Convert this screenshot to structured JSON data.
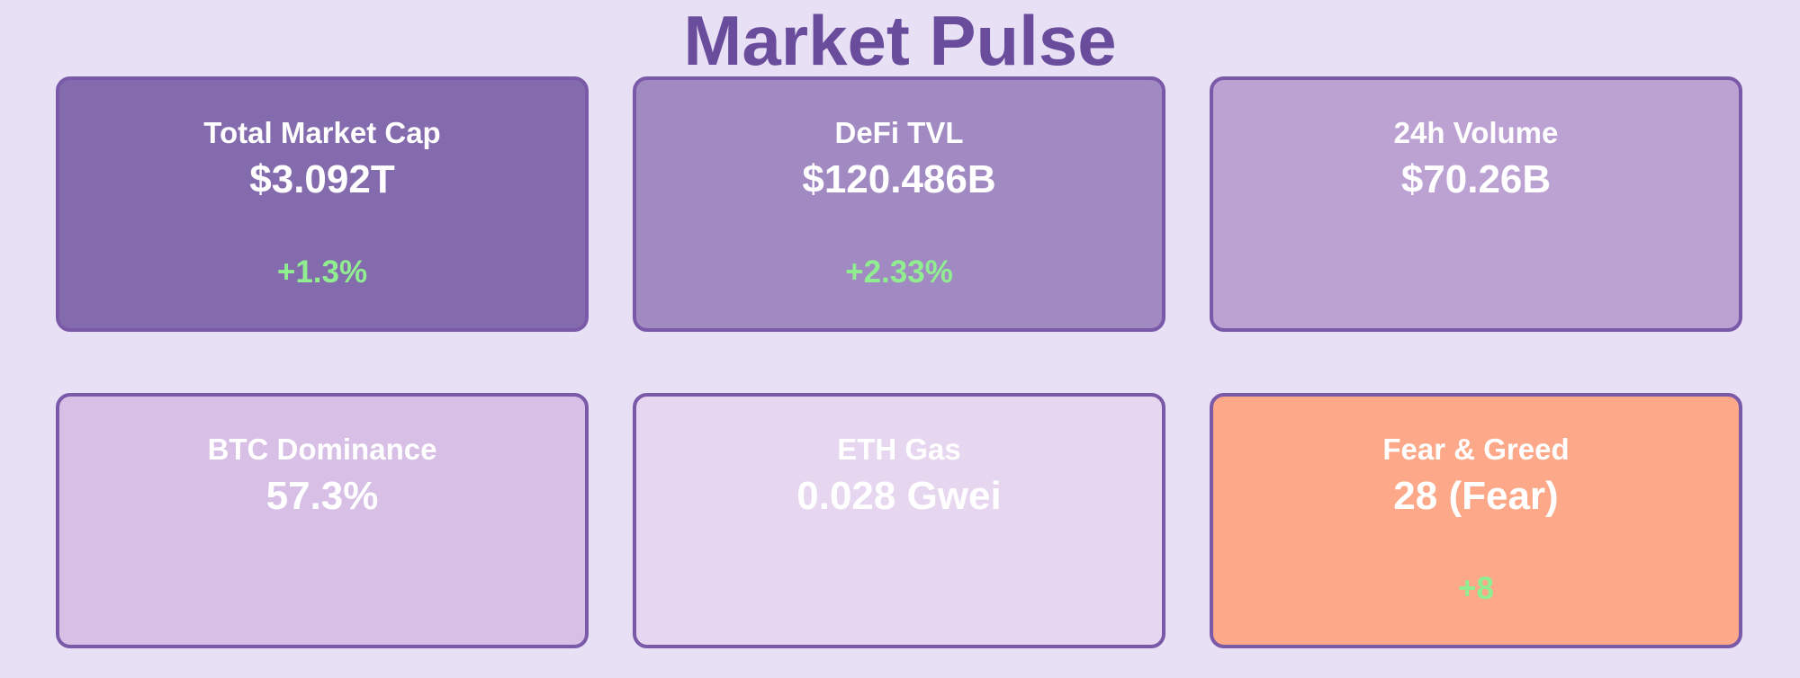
{
  "header": {
    "title": "Market Pulse"
  },
  "cards": [
    {
      "label": "Total Market Cap",
      "value": "$3.092T",
      "change": "+1.3%"
    },
    {
      "label": "DeFi TVL",
      "value": "$120.486B",
      "change": "+2.33%"
    },
    {
      "label": "24h Volume",
      "value": "$70.26B"
    },
    {
      "label": "BTC Dominance",
      "value": "57.3%"
    },
    {
      "label": "ETH Gas",
      "value": "0.028 Gwei"
    },
    {
      "label": "Fear & Greed",
      "value": "28 (Fear)",
      "change": "+8"
    }
  ]
}
